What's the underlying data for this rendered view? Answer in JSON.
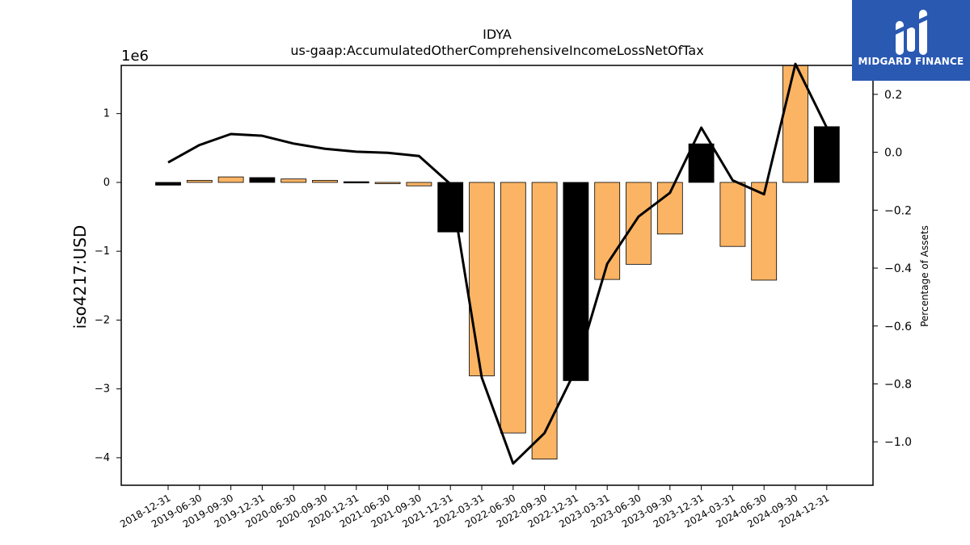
{
  "chart_data": {
    "type": "bar",
    "title": "IDYA",
    "subtitle": "us-gaap:AccumulatedOtherComprehensiveIncomeLossNetOfTax",
    "ylabel": "iso4217:USD",
    "ylabel_right": "Percentage of Assets",
    "y_scale_label": "1e6",
    "ylim": [
      -4.4,
      1.7
    ],
    "ylim_right": [
      -1.15,
      0.3
    ],
    "yticks": [
      -4,
      -3,
      -2,
      -1,
      0,
      1
    ],
    "ytick_labels": [
      "−4",
      "−3",
      "−2",
      "−1",
      "0",
      "1"
    ],
    "yticks_right": [
      -1.0,
      -0.8,
      -0.6,
      -0.4,
      -0.2,
      0.0,
      0.2
    ],
    "ytick_labels_right": [
      "−1.0",
      "−0.8",
      "−0.6",
      "−0.4",
      "−0.2",
      "0.0",
      "0.2"
    ],
    "grid": false,
    "categories": [
      "2018-12-31",
      "2019-06-30",
      "2019-09-30",
      "2019-12-31",
      "2020-06-30",
      "2020-09-30",
      "2020-12-31",
      "2021-06-30",
      "2021-09-30",
      "2021-12-31",
      "2022-03-31",
      "2022-06-30",
      "2022-09-30",
      "2022-12-31",
      "2023-03-31",
      "2023-06-30",
      "2023-09-30",
      "2023-12-31",
      "2024-03-31",
      "2024-06-30",
      "2024-09-30",
      "2024-12-31"
    ],
    "bar_values": [
      -0.04,
      0.03,
      0.08,
      0.07,
      0.05,
      0.03,
      0.01,
      0.0,
      -0.05,
      -0.72,
      -2.81,
      -3.64,
      -4.02,
      -2.88,
      -1.41,
      -1.19,
      -0.75,
      0.56,
      -0.93,
      -1.42,
      1.75,
      0.81
    ],
    "bar_colors": [
      "#000000",
      "#fbb464",
      "#fbb464",
      "#000000",
      "#fbb464",
      "#fbb464",
      "#000000",
      "#fbb464",
      "#fbb464",
      "#000000",
      "#fbb464",
      "#fbb464",
      "#fbb464",
      "#000000",
      "#fbb464",
      "#fbb464",
      "#fbb464",
      "#000000",
      "#fbb464",
      "#fbb464",
      "#fbb464",
      "#000000"
    ],
    "line_values": [
      -0.035,
      0.025,
      0.063,
      0.057,
      0.03,
      0.012,
      0.002,
      -0.002,
      -0.013,
      -0.11,
      -0.778,
      -1.075,
      -0.97,
      -0.75,
      -0.385,
      -0.222,
      -0.14,
      0.085,
      -0.097,
      -0.145,
      0.305,
      0.085
    ],
    "line_color": "#000000"
  },
  "logo": {
    "text": "MIDGARD FINANCE",
    "bg_color": "#2a59b2"
  }
}
